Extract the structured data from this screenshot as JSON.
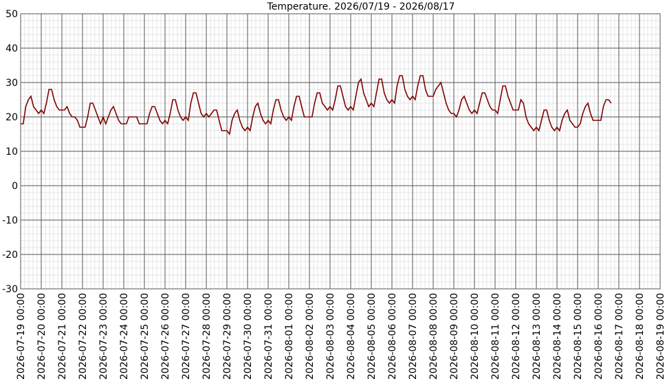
{
  "chart_data": {
    "type": "line",
    "title": "Temperature. 2026/07/19 - 2026/08/17",
    "color": "#800000",
    "grid": true,
    "xlim": [
      "2026-07-19 00:00",
      "2026-08-19 00:00"
    ],
    "xticks": [
      "2026-07-19 00:00",
      "2026-07-20 00:00",
      "2026-07-21 00:00",
      "2026-07-22 00:00",
      "2026-07-23 00:00",
      "2026-07-24 00:00",
      "2026-07-25 00:00",
      "2026-07-26 00:00",
      "2026-07-27 00:00",
      "2026-07-28 00:00",
      "2026-07-29 00:00",
      "2026-07-30 00:00",
      "2026-07-31 00:00",
      "2026-08-01 00:00",
      "2026-08-02 00:00",
      "2026-08-03 00:00",
      "2026-08-04 00:00",
      "2026-08-05 00:00",
      "2026-08-06 00:00",
      "2026-08-07 00:00",
      "2026-08-08 00:00",
      "2026-08-09 00:00",
      "2026-08-10 00:00",
      "2026-08-11 00:00",
      "2026-08-12 00:00",
      "2026-08-13 00:00",
      "2026-08-14 00:00",
      "2026-08-15 00:00",
      "2026-08-16 00:00",
      "2026-08-17 00:00",
      "2026-08-18 00:00",
      "2026-08-19 00:00"
    ],
    "ylim": [
      -30,
      50
    ],
    "yticks": [
      -30,
      -20,
      -10,
      0,
      10,
      20,
      30,
      40,
      50
    ],
    "x": [
      "2026-07-19 00:00",
      "2026-07-19 03:00",
      "2026-07-19 06:00",
      "2026-07-19 09:00",
      "2026-07-19 12:00",
      "2026-07-19 15:00",
      "2026-07-19 18:00",
      "2026-07-19 21:00",
      "2026-07-20 00:00",
      "2026-07-20 03:00",
      "2026-07-20 06:00",
      "2026-07-20 09:00",
      "2026-07-20 12:00",
      "2026-07-20 15:00",
      "2026-07-20 18:00",
      "2026-07-20 21:00",
      "2026-07-21 00:00",
      "2026-07-21 03:00",
      "2026-07-21 06:00",
      "2026-07-21 09:00",
      "2026-07-21 12:00",
      "2026-07-21 15:00",
      "2026-07-21 18:00",
      "2026-07-21 21:00",
      "2026-07-22 00:00",
      "2026-07-22 03:00",
      "2026-07-22 06:00",
      "2026-07-22 09:00",
      "2026-07-22 12:00",
      "2026-07-22 15:00",
      "2026-07-22 18:00",
      "2026-07-22 21:00",
      "2026-07-23 00:00",
      "2026-07-23 03:00",
      "2026-07-23 06:00",
      "2026-07-23 09:00",
      "2026-07-23 12:00",
      "2026-07-23 15:00",
      "2026-07-23 18:00",
      "2026-07-23 21:00",
      "2026-07-24 00:00",
      "2026-07-24 03:00",
      "2026-07-24 06:00",
      "2026-07-24 09:00",
      "2026-07-24 12:00",
      "2026-07-24 15:00",
      "2026-07-24 18:00",
      "2026-07-24 21:00",
      "2026-07-25 00:00",
      "2026-07-25 03:00",
      "2026-07-25 06:00",
      "2026-07-25 09:00",
      "2026-07-25 12:00",
      "2026-07-25 15:00",
      "2026-07-25 18:00",
      "2026-07-25 21:00",
      "2026-07-26 00:00",
      "2026-07-26 03:00",
      "2026-07-26 06:00",
      "2026-07-26 09:00",
      "2026-07-26 12:00",
      "2026-07-26 15:00",
      "2026-07-26 18:00",
      "2026-07-26 21:00",
      "2026-07-27 00:00",
      "2026-07-27 03:00",
      "2026-07-27 06:00",
      "2026-07-27 09:00",
      "2026-07-27 12:00",
      "2026-07-27 15:00",
      "2026-07-27 18:00",
      "2026-07-27 21:00",
      "2026-07-28 00:00",
      "2026-07-28 03:00",
      "2026-07-28 06:00",
      "2026-07-28 09:00",
      "2026-07-28 12:00",
      "2026-07-28 15:00",
      "2026-07-28 18:00",
      "2026-07-28 21:00",
      "2026-07-29 00:00",
      "2026-07-29 03:00",
      "2026-07-29 06:00",
      "2026-07-29 09:00",
      "2026-07-29 12:00",
      "2026-07-29 15:00",
      "2026-07-29 18:00",
      "2026-07-29 21:00",
      "2026-07-30 00:00",
      "2026-07-30 03:00",
      "2026-07-30 06:00",
      "2026-07-30 09:00",
      "2026-07-30 12:00",
      "2026-07-30 15:00",
      "2026-07-30 18:00",
      "2026-07-30 21:00",
      "2026-07-31 00:00",
      "2026-07-31 03:00",
      "2026-07-31 06:00",
      "2026-07-31 09:00",
      "2026-07-31 12:00",
      "2026-07-31 15:00",
      "2026-07-31 18:00",
      "2026-07-31 21:00",
      "2026-08-01 00:00",
      "2026-08-01 03:00",
      "2026-08-01 06:00",
      "2026-08-01 09:00",
      "2026-08-01 12:00",
      "2026-08-01 15:00",
      "2026-08-01 18:00",
      "2026-08-01 21:00",
      "2026-08-02 00:00",
      "2026-08-02 03:00",
      "2026-08-02 06:00",
      "2026-08-02 09:00",
      "2026-08-02 12:00",
      "2026-08-02 15:00",
      "2026-08-02 18:00",
      "2026-08-02 21:00",
      "2026-08-03 00:00",
      "2026-08-03 03:00",
      "2026-08-03 06:00",
      "2026-08-03 09:00",
      "2026-08-03 12:00",
      "2026-08-03 15:00",
      "2026-08-03 18:00",
      "2026-08-03 21:00",
      "2026-08-04 00:00",
      "2026-08-04 03:00",
      "2026-08-04 06:00",
      "2026-08-04 09:00",
      "2026-08-04 12:00",
      "2026-08-04 15:00",
      "2026-08-04 18:00",
      "2026-08-04 21:00",
      "2026-08-05 00:00",
      "2026-08-05 03:00",
      "2026-08-05 06:00",
      "2026-08-05 09:00",
      "2026-08-05 12:00",
      "2026-08-05 15:00",
      "2026-08-05 18:00",
      "2026-08-05 21:00",
      "2026-08-06 00:00",
      "2026-08-06 03:00",
      "2026-08-06 06:00",
      "2026-08-06 09:00",
      "2026-08-06 12:00",
      "2026-08-06 15:00",
      "2026-08-06 18:00",
      "2026-08-06 21:00",
      "2026-08-07 00:00",
      "2026-08-07 03:00",
      "2026-08-07 06:00",
      "2026-08-07 09:00",
      "2026-08-07 12:00",
      "2026-08-07 15:00",
      "2026-08-07 18:00",
      "2026-08-07 21:00",
      "2026-08-08 00:00",
      "2026-08-08 03:00",
      "2026-08-08 06:00",
      "2026-08-08 09:00",
      "2026-08-08 12:00",
      "2026-08-08 15:00",
      "2026-08-08 18:00",
      "2026-08-08 21:00",
      "2026-08-09 00:00",
      "2026-08-09 03:00",
      "2026-08-09 06:00",
      "2026-08-09 09:00",
      "2026-08-09 12:00",
      "2026-08-09 15:00",
      "2026-08-09 18:00",
      "2026-08-09 21:00",
      "2026-08-10 00:00",
      "2026-08-10 03:00",
      "2026-08-10 06:00",
      "2026-08-10 09:00",
      "2026-08-10 12:00",
      "2026-08-10 15:00",
      "2026-08-10 18:00",
      "2026-08-10 21:00",
      "2026-08-11 00:00",
      "2026-08-11 03:00",
      "2026-08-11 06:00",
      "2026-08-11 09:00",
      "2026-08-11 12:00",
      "2026-08-11 15:00",
      "2026-08-11 18:00",
      "2026-08-11 21:00",
      "2026-08-12 00:00",
      "2026-08-12 03:00",
      "2026-08-12 06:00",
      "2026-08-12 09:00",
      "2026-08-12 12:00",
      "2026-08-12 15:00",
      "2026-08-12 18:00",
      "2026-08-12 21:00",
      "2026-08-13 00:00",
      "2026-08-13 03:00",
      "2026-08-13 06:00",
      "2026-08-13 09:00",
      "2026-08-13 12:00",
      "2026-08-13 15:00",
      "2026-08-13 18:00",
      "2026-08-13 21:00",
      "2026-08-14 00:00",
      "2026-08-14 03:00",
      "2026-08-14 06:00",
      "2026-08-14 09:00",
      "2026-08-14 12:00",
      "2026-08-14 15:00",
      "2026-08-14 18:00",
      "2026-08-14 21:00",
      "2026-08-15 00:00",
      "2026-08-15 03:00",
      "2026-08-15 06:00",
      "2026-08-15 09:00",
      "2026-08-15 12:00",
      "2026-08-15 15:00",
      "2026-08-15 18:00",
      "2026-08-15 21:00",
      "2026-08-16 00:00",
      "2026-08-16 03:00",
      "2026-08-16 06:00",
      "2026-08-16 09:00",
      "2026-08-16 12:00",
      "2026-08-16 15:00"
    ],
    "values": [
      18,
      18,
      23,
      25,
      26,
      23,
      22,
      21,
      22,
      21,
      24,
      28,
      28,
      25,
      23,
      22,
      22,
      22,
      23,
      21,
      20,
      20,
      19,
      17,
      17,
      17,
      20,
      24,
      24,
      22,
      20,
      18,
      20,
      18,
      20,
      22,
      23,
      21,
      19,
      18,
      18,
      18,
      20,
      20,
      20,
      20,
      18,
      18,
      18,
      18,
      21,
      23,
      23,
      21,
      19,
      18,
      19,
      18,
      21,
      25,
      25,
      22,
      20,
      19,
      20,
      19,
      24,
      27,
      27,
      24,
      21,
      20,
      21,
      20,
      21,
      22,
      22,
      19,
      16,
      16,
      16,
      15,
      19,
      21,
      22,
      19,
      17,
      16,
      17,
      16,
      20,
      23,
      24,
      21,
      19,
      18,
      19,
      18,
      22,
      25,
      25,
      22,
      20,
      19,
      20,
      19,
      23,
      26,
      26,
      23,
      20,
      20,
      20,
      20,
      24,
      27,
      27,
      24,
      23,
      22,
      23,
      22,
      25,
      29,
      29,
      26,
      23,
      22,
      23,
      22,
      26,
      30,
      31,
      27,
      25,
      23,
      24,
      23,
      27,
      31,
      31,
      27,
      25,
      24,
      25,
      24,
      29,
      32,
      32,
      28,
      26,
      25,
      26,
      25,
      29,
      32,
      32,
      28,
      26,
      26,
      26,
      28,
      29,
      30,
      27,
      24,
      22,
      21,
      21,
      20,
      22,
      25,
      26,
      24,
      22,
      21,
      22,
      21,
      24,
      27,
      27,
      25,
      23,
      22,
      22,
      21,
      25,
      29,
      29,
      26,
      24,
      22,
      22,
      22,
      25,
      24,
      20,
      18,
      17,
      16,
      17,
      16,
      19,
      22,
      22,
      19,
      17,
      16,
      17,
      16,
      19,
      21,
      22,
      19,
      18,
      17,
      17,
      18,
      21,
      23,
      24,
      21,
      19,
      19,
      19,
      19,
      23,
      25,
      25,
      24
    ]
  }
}
